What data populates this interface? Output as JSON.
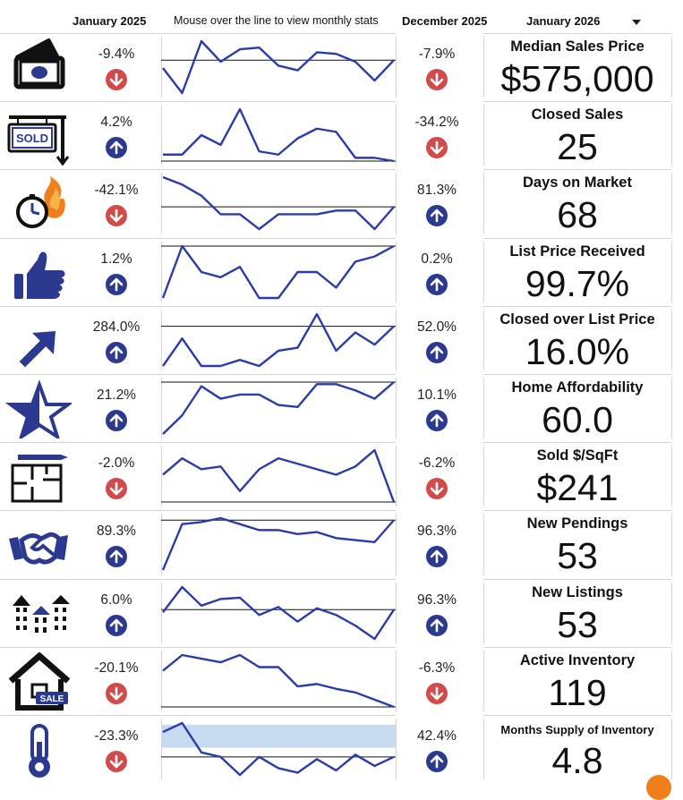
{
  "header": {
    "left_period": "January 2025",
    "instruction": "Mouse over the line to view monthly stats",
    "right_period": "December 2025",
    "selected_month": "January 2026"
  },
  "colors": {
    "up": "#2b3990",
    "down": "#d24a4a",
    "line": "#2b3caa",
    "band": "#c7daf0"
  },
  "metrics": [
    {
      "label": "Median Sales Price",
      "value": "$575,000",
      "icon": "money-icon",
      "left_pct": "-9.4%",
      "left_dir": "down",
      "right_pct": "-7.9%",
      "right_dir": "down",
      "series": [
        47.5,
        31.5,
        64.6,
        51.5,
        59.4,
        60.5,
        49.0,
        46.0,
        57.5,
        56.5,
        51.5,
        39.5,
        52.5
      ]
    },
    {
      "label": "Closed Sales",
      "value": "25",
      "icon": "sold-sign-icon",
      "left_pct": "4.2%",
      "left_dir": "up",
      "right_pct": "-34.2%",
      "right_dir": "down",
      "series": [
        24,
        24,
        30,
        27,
        38,
        25,
        24,
        29,
        32,
        31,
        23,
        23,
        22
      ]
    },
    {
      "label": "Days on Market",
      "value": "68",
      "icon": "stopwatch-fire-icon",
      "left_pct": "-42.1%",
      "left_dir": "down",
      "right_pct": "81.3%",
      "right_dir": "up",
      "series": [
        81,
        79,
        76,
        71,
        71,
        67,
        71,
        71,
        71,
        72,
        72,
        67,
        73
      ]
    },
    {
      "label": "List Price Received",
      "value": "99.7%",
      "icon": "thumbs-up-icon",
      "left_pct": "1.2%",
      "left_dir": "up",
      "right_pct": "0.2%",
      "right_dir": "up",
      "series": [
        98.9,
        99.9,
        99.4,
        99.3,
        99.5,
        98.9,
        98.9,
        99.4,
        99.4,
        99.1,
        99.6,
        99.7,
        99.9
      ]
    },
    {
      "label": "Closed over List Price",
      "value": "16.0%",
      "icon": "trend-arrow-icon",
      "left_pct": "284.0%",
      "left_dir": "up",
      "right_pct": "52.0%",
      "right_dir": "up",
      "series": [
        10,
        19,
        10,
        10,
        12,
        10,
        15,
        16,
        27,
        15,
        21,
        17,
        23
      ]
    },
    {
      "label": "Home Affordability",
      "value": "60.0",
      "icon": "star-icon",
      "left_pct": "21.2%",
      "left_dir": "up",
      "right_pct": "10.1%",
      "right_dir": "up",
      "series": [
        47.5,
        52,
        59,
        56,
        57,
        57,
        54.5,
        54,
        59.5,
        59.5,
        58,
        56,
        60
      ]
    },
    {
      "label": "Sold $/SqFt",
      "value": "$241",
      "icon": "floor-plan-icon",
      "left_pct": "-2.0%",
      "left_dir": "down",
      "right_pct": "-6.2%",
      "right_dir": "down",
      "series": [
        248,
        254,
        250,
        251,
        242,
        250,
        254,
        252,
        250,
        248,
        251,
        257,
        238
      ]
    },
    {
      "label": "New Pendings",
      "value": "53",
      "icon": "handshake-icon",
      "left_pct": "89.3%",
      "left_dir": "up",
      "right_pct": "96.3%",
      "right_dir": "up",
      "series": [
        28,
        51,
        52,
        54,
        51,
        48,
        48,
        46,
        47,
        44,
        43,
        42,
        53
      ]
    },
    {
      "label": "New Listings",
      "value": "53",
      "icon": "buildings-icon",
      "left_pct": "6.0%",
      "left_dir": "up",
      "right_pct": "96.3%",
      "right_dir": "up",
      "series": [
        51,
        70,
        56,
        61,
        62,
        49,
        55,
        44,
        54,
        49,
        41,
        31,
        53
      ]
    },
    {
      "label": "Active Inventory",
      "value": "119",
      "icon": "house-sale-icon",
      "left_pct": "-20.1%",
      "left_dir": "down",
      "right_pct": "-6.3%",
      "right_dir": "down",
      "series": [
        143,
        156,
        153,
        150,
        156,
        146,
        146,
        130,
        132,
        128,
        125,
        119,
        113
      ]
    },
    {
      "label": "Months Supply of Inventory",
      "value": "4.8",
      "icon": "thermometer-icon",
      "left_pct": "-23.3%",
      "left_dir": "down",
      "right_pct": "42.4%",
      "right_dir": "up",
      "series": [
        6.2,
        6.6,
        5.3,
        5.1,
        4.3,
        5.1,
        4.6,
        4.4,
        5.0,
        4.5,
        5.2,
        4.7,
        5.1
      ]
    }
  ]
}
